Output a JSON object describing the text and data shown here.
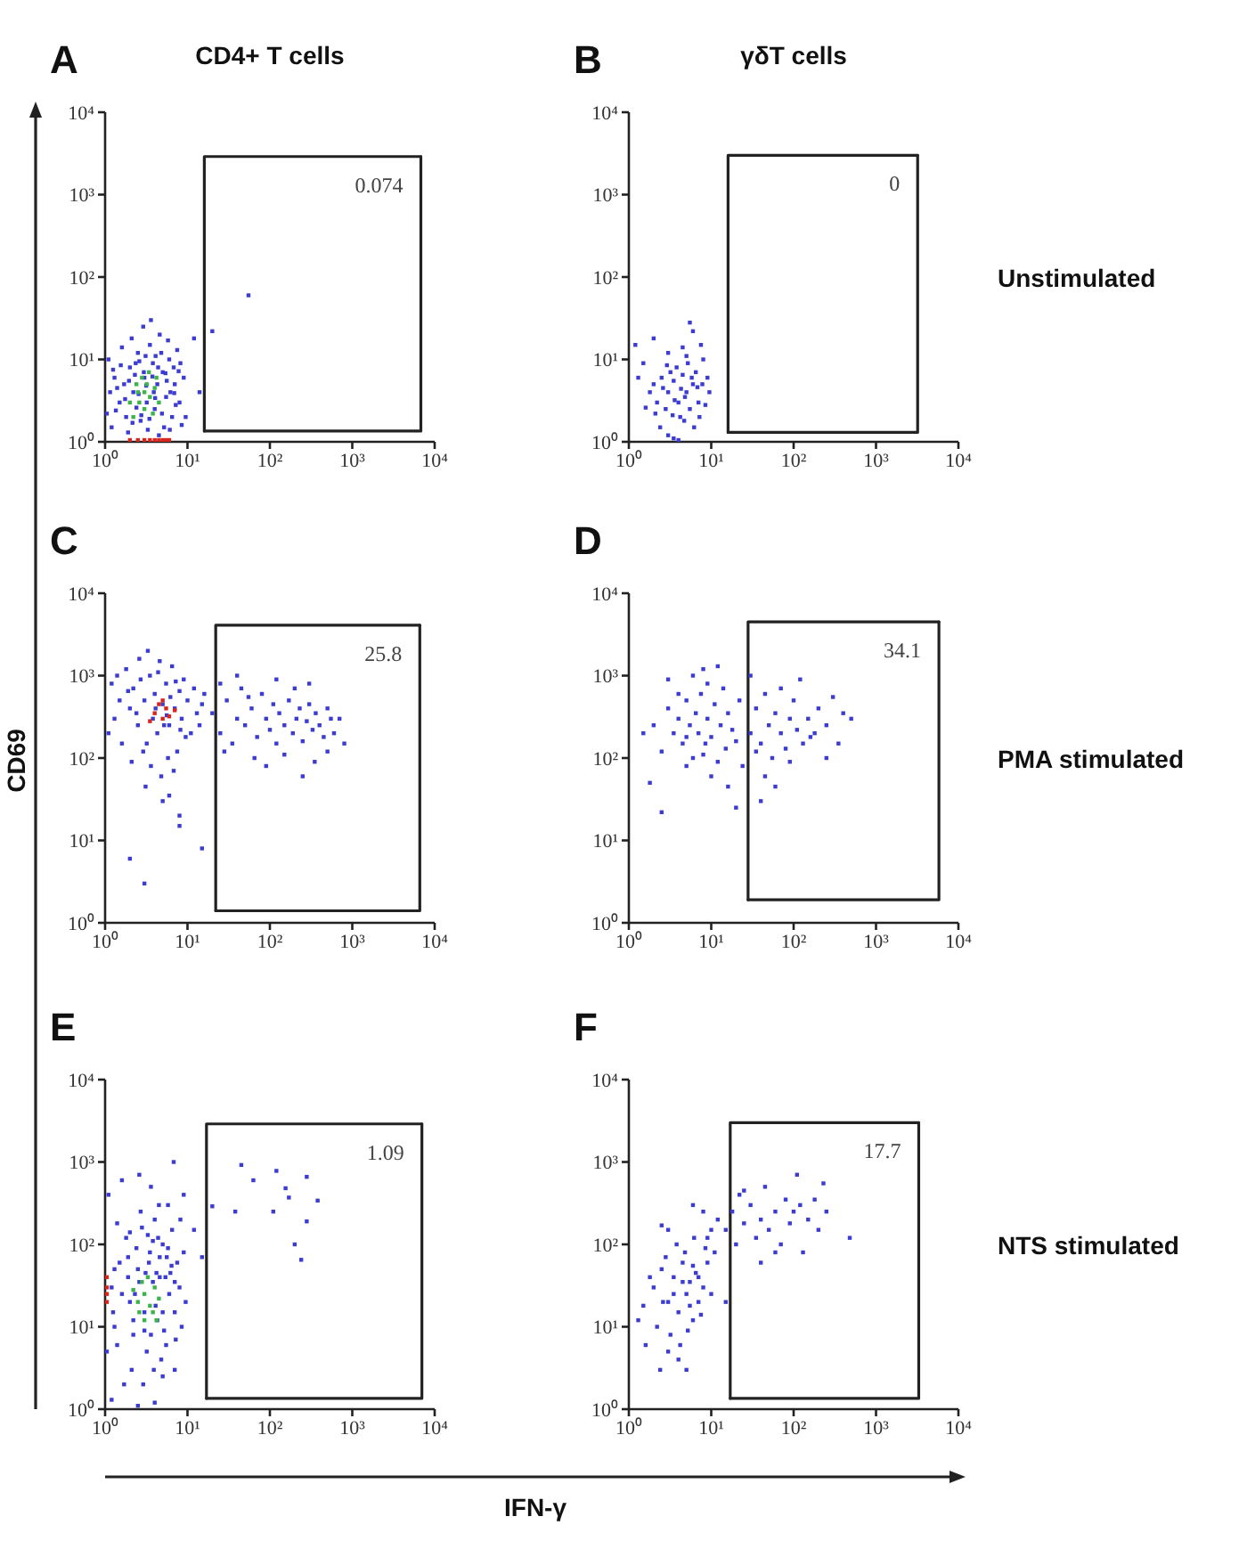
{
  "chart_data": [
    {
      "type": "scatter",
      "title": "A",
      "subtitle": "CD4+ T cells",
      "log": "xy",
      "marker": "square",
      "xlim": [
        1,
        10000
      ],
      "ylim": [
        1,
        10000
      ],
      "xticks": [
        {
          "value": 1,
          "label": "10⁰"
        },
        {
          "value": 10,
          "label": "10¹"
        },
        {
          "value": 100,
          "label": "10²"
        },
        {
          "value": 1000,
          "label": "10³"
        },
        {
          "value": 10000,
          "label": "10⁴"
        }
      ],
      "yticks": [
        {
          "value": 1,
          "label": "10⁰"
        },
        {
          "value": 10,
          "label": "10¹"
        },
        {
          "value": 100,
          "label": "10²"
        },
        {
          "value": 1000,
          "label": "10³"
        },
        {
          "value": 10000,
          "label": "10⁴"
        }
      ],
      "series": [
        {
          "color": "#3c3cd2",
          "x": [
            1.2,
            1.5,
            1.3,
            1.8,
            2,
            2.2,
            2.5,
            2.7,
            3,
            3.2,
            3.5,
            3.8,
            4,
            4.3,
            4.6,
            5,
            5.5,
            6,
            6.5,
            7,
            7.5,
            8,
            8.5,
            1.1,
            1.6,
            2.1,
            2.9,
            3.6,
            4.8,
            5.8,
            6.8,
            1.4,
            1.9,
            2.4,
            3.3,
            4.1,
            5.2,
            6.2,
            7.2,
            9,
            9.5,
            1.05,
            1.25,
            2.6,
            3.9,
            4.5,
            5.6,
            8.2,
            1.7,
            2.3,
            3.1,
            20,
            55,
            12,
            14,
            1.15,
            1.35,
            1.55,
            1.75,
            1.95,
            2.15,
            2.35,
            2.55,
            2.75,
            2.95,
            3.15,
            3.45,
            3.75,
            4.05,
            4.4,
            4.9,
            5.4,
            6.1,
            6.9,
            7.8
          ],
          "values": [
            1.5,
            3,
            6,
            2,
            8,
            4,
            12,
            1.8,
            6,
            3,
            15,
            9,
            2.5,
            5,
            20,
            7,
            3.5,
            10,
            2,
            5,
            13,
            3,
            1.6,
            10,
            14,
            18,
            25,
            30,
            12,
            17,
            8,
            4.5,
            1.3,
            2.6,
            1.4,
            11,
            1.5,
            4,
            2.8,
            6,
            2,
            2.2,
            7.5,
            9.5,
            4,
            1.2,
            5.5,
            9,
            5,
            6.5,
            11,
            22,
            60,
            18,
            4,
            4,
            2.4,
            8.5,
            3.3,
            5.5,
            1.7,
            9,
            3.8,
            2.1,
            7,
            4.8,
            1.9,
            6.2,
            3.4,
            8,
            2.2,
            6.8,
            1.4,
            3.9,
            7.2
          ]
        },
        {
          "color": "#3cb44b",
          "x": [
            2,
            2.5,
            3,
            3.2,
            3.5,
            4,
            2.8,
            3.8,
            2.2,
            4.5,
            3,
            2.6,
            3.4,
            4.2,
            2.4
          ],
          "values": [
            3,
            4,
            2.5,
            5,
            3.5,
            4.5,
            6,
            2.2,
            2,
            3,
            4,
            3,
            7,
            6,
            5
          ]
        },
        {
          "color": "#d7261e",
          "x": [
            2,
            2.5,
            3,
            3.5,
            4,
            4.5,
            5,
            5.5,
            6
          ],
          "values": [
            1.05,
            1.05,
            1.05,
            1.05,
            1.05,
            1.05,
            1.05,
            1.05,
            1.05
          ]
        },
        {
          "type": "line",
          "color": "#222222",
          "marker": "none",
          "x": [
            16,
            16,
            6800
          ],
          "values": [
            1.35,
            2900,
            2900
          ]
        },
        {
          "type": "line",
          "color": "#222222",
          "marker": "none",
          "x": [
            16,
            6800,
            6800
          ],
          "values": [
            1.35,
            1.35,
            2900
          ]
        }
      ],
      "annotations": [
        {
          "text": "0.074",
          "x": 6800,
          "y": 2900
        }
      ]
    },
    {
      "type": "scatter",
      "title": "B",
      "subtitle": "γδT cells",
      "log": "xy",
      "marker": "square",
      "xlim": [
        1,
        10000
      ],
      "ylim": [
        1,
        10000
      ],
      "xticks": [
        {
          "value": 1,
          "label": "10⁰"
        },
        {
          "value": 10,
          "label": "10¹"
        },
        {
          "value": 100,
          "label": "10²"
        },
        {
          "value": 1000,
          "label": "10³"
        },
        {
          "value": 10000,
          "label": "10⁴"
        }
      ],
      "yticks": [
        {
          "value": 1,
          "label": "10⁰"
        },
        {
          "value": 10,
          "label": "10¹"
        },
        {
          "value": 100,
          "label": "10²"
        },
        {
          "value": 1000,
          "label": "10³"
        },
        {
          "value": 10000,
          "label": "10⁴"
        }
      ],
      "series": [
        {
          "color": "#3c3cd2",
          "x": [
            2,
            2.5,
            3,
            3.5,
            4,
            4.5,
            5,
            5.5,
            6,
            2.2,
            2.8,
            3.2,
            3.8,
            4.2,
            4.8,
            5.2,
            6.5,
            7,
            2.4,
            3,
            3.5,
            4,
            5.5,
            6,
            4.5,
            7.5,
            8,
            9,
            1.5,
            1.3,
            1.2,
            2,
            3,
            2.6,
            3.6,
            4.3,
            5.8,
            6.8,
            7.2,
            8.5,
            2.1,
            1.8,
            4.7,
            3.4,
            5,
            1.6,
            9.5,
            2.9,
            6.2,
            7.8
          ],
          "values": [
            5,
            6,
            4,
            5.5,
            3,
            6.5,
            4,
            2.5,
            5,
            3,
            2.5,
            7,
            8,
            2,
            3.5,
            9,
            7,
            3,
            1.5,
            1.2,
            1.1,
            1.05,
            28,
            22,
            14,
            15,
            10,
            6,
            9,
            6,
            15,
            18,
            12,
            4.5,
            3.2,
            4.4,
            6,
            4.6,
            2,
            2.8,
            2.2,
            4,
            1.8,
            2.1,
            11,
            2.6,
            4,
            8.5,
            1.5,
            5
          ]
        },
        {
          "type": "line",
          "color": "#222222",
          "marker": "none",
          "x": [
            16,
            16,
            3200
          ],
          "values": [
            1.3,
            3000,
            3000
          ]
        },
        {
          "type": "line",
          "color": "#222222",
          "marker": "none",
          "x": [
            16,
            3200,
            3200
          ],
          "values": [
            1.3,
            1.3,
            3000
          ]
        }
      ],
      "annotations": [
        {
          "text": "0",
          "x": 3200,
          "y": 3000
        },
        "Unstimulated"
      ]
    },
    {
      "type": "scatter",
      "title": "C",
      "ylabel": "CD69",
      "log": "xy",
      "marker": "square",
      "xlim": [
        1,
        10000
      ],
      "ylim": [
        1,
        10000
      ],
      "xticks": [
        {
          "value": 1,
          "label": "10⁰"
        },
        {
          "value": 10,
          "label": "10¹"
        },
        {
          "value": 100,
          "label": "10²"
        },
        {
          "value": 1000,
          "label": "10³"
        },
        {
          "value": 10000,
          "label": "10⁴"
        }
      ],
      "yticks": [
        {
          "value": 1,
          "label": "10⁰"
        },
        {
          "value": 10,
          "label": "10¹"
        },
        {
          "value": 100,
          "label": "10²"
        },
        {
          "value": 1000,
          "label": "10³"
        },
        {
          "value": 10000,
          "label": "10⁴"
        }
      ],
      "series": [
        {
          "color": "#3c3cd2",
          "x": [
            1.2,
            1.5,
            1.3,
            1.8,
            2,
            2.2,
            2.5,
            2.7,
            3,
            3.2,
            3.5,
            3.8,
            4,
            4.3,
            4.6,
            5,
            5.5,
            6,
            6.5,
            7,
            7.5,
            8,
            8.5,
            9,
            10,
            11,
            12,
            13,
            15,
            1.1,
            1.6,
            2.1,
            2.9,
            3.6,
            4.8,
            5.8,
            6.8,
            1.4,
            1.9,
            2.4,
            3.3,
            4.1,
            5.2,
            6.2,
            7.2,
            9.5,
            14,
            16,
            2.6,
            4.4,
            5.6,
            8.2,
            3.1,
            5,
            8,
            6,
            2,
            3,
            8,
            15,
            20,
            25,
            30,
            35,
            40,
            45,
            50,
            60,
            70,
            80,
            90,
            100,
            110,
            120,
            130,
            150,
            170,
            190,
            210,
            230,
            250,
            280,
            300,
            330,
            360,
            400,
            450,
            500,
            550,
            600,
            700,
            800,
            25,
            40,
            65,
            90,
            150,
            250,
            350,
            500,
            120,
            200,
            300,
            28,
            55
          ],
          "values": [
            800,
            500,
            300,
            1200,
            400,
            700,
            250,
            900,
            500,
            150,
            1000,
            300,
            600,
            200,
            1500,
            450,
            800,
            250,
            1300,
            400,
            120,
            650,
            300,
            900,
            500,
            200,
            700,
            350,
            450,
            200,
            150,
            90,
            120,
            80,
            60,
            100,
            70,
            1000,
            650,
            350,
            2000,
            400,
            250,
            550,
            850,
            180,
            250,
            600,
            1600,
            1100,
            330,
            220,
            45,
            30,
            20,
            35,
            6,
            3,
            15,
            8,
            350,
            200,
            500,
            150,
            300,
            700,
            250,
            400,
            180,
            600,
            300,
            220,
            450,
            150,
            350,
            250,
            500,
            200,
            300,
            400,
            160,
            280,
            450,
            220,
            350,
            250,
            180,
            400,
            300,
            200,
            300,
            150,
            800,
            1000,
            100,
            80,
            110,
            60,
            90,
            120,
            900,
            700,
            800,
            120,
            550
          ]
        },
        {
          "color": "#d7261e",
          "x": [
            4,
            5,
            5.5,
            6,
            4.5,
            3.5,
            7,
            5
          ],
          "values": [
            350,
            300,
            400,
            320,
            450,
            280,
            380,
            500
          ]
        },
        {
          "type": "line",
          "color": "#222222",
          "marker": "none",
          "x": [
            22,
            22,
            6600
          ],
          "values": [
            1.4,
            4100,
            4100
          ]
        },
        {
          "type": "line",
          "color": "#222222",
          "marker": "none",
          "x": [
            22,
            6600,
            6600
          ],
          "values": [
            1.4,
            1.4,
            4100
          ]
        }
      ],
      "annotations": [
        {
          "text": "25.8",
          "x": 6600,
          "y": 4100
        }
      ]
    },
    {
      "type": "scatter",
      "title": "D",
      "log": "xy",
      "marker": "square",
      "xlim": [
        1,
        10000
      ],
      "ylim": [
        1,
        10000
      ],
      "xticks": [
        {
          "value": 1,
          "label": "10⁰"
        },
        {
          "value": 10,
          "label": "10¹"
        },
        {
          "value": 100,
          "label": "10²"
        },
        {
          "value": 1000,
          "label": "10³"
        },
        {
          "value": 10000,
          "label": "10⁴"
        }
      ],
      "yticks": [
        {
          "value": 1,
          "label": "10⁰"
        },
        {
          "value": 10,
          "label": "10¹"
        },
        {
          "value": 100,
          "label": "10²"
        },
        {
          "value": 1000,
          "label": "10³"
        },
        {
          "value": 10000,
          "label": "10⁴"
        }
      ],
      "series": [
        {
          "color": "#3c3cd2",
          "x": [
            2,
            2.5,
            3,
            3.5,
            4,
            4.5,
            5,
            5.5,
            6,
            6.5,
            7,
            7.5,
            8,
            8.5,
            9,
            10,
            11,
            12,
            13,
            14,
            15,
            16,
            18,
            20,
            22,
            24,
            1.5,
            1.8,
            2.5,
            3,
            4,
            5,
            6,
            9,
            10,
            12,
            16,
            20,
            8,
            5,
            30,
            35,
            40,
            45,
            50,
            55,
            60,
            70,
            80,
            90,
            100,
            110,
            120,
            130,
            150,
            180,
            200,
            250,
            300,
            350,
            400,
            30,
            40,
            45,
            60,
            70,
            35,
            90,
            500,
            250,
            160
          ],
          "values": [
            250,
            120,
            400,
            200,
            300,
            150,
            500,
            250,
            100,
            350,
            200,
            600,
            1200,
            150,
            300,
            180,
            450,
            90,
            250,
            700,
            130,
            350,
            220,
            160,
            500,
            80,
            200,
            50,
            22,
            900,
            600,
            80,
            1000,
            800,
            60,
            1300,
            45,
            25,
            110,
            180,
            200,
            400,
            150,
            600,
            250,
            100,
            350,
            200,
            130,
            300,
            500,
            220,
            900,
            150,
            300,
            200,
            400,
            250,
            550,
            150,
            350,
            1000,
            30,
            60,
            45,
            700,
            120,
            90,
            300,
            100,
            180
          ]
        },
        {
          "type": "line",
          "color": "#222222",
          "marker": "none",
          "x": [
            28,
            28,
            5800
          ],
          "values": [
            1.9,
            4500,
            4500
          ]
        },
        {
          "type": "line",
          "color": "#222222",
          "marker": "none",
          "x": [
            28,
            5800,
            5800
          ],
          "values": [
            1.9,
            1.9,
            4500
          ]
        }
      ],
      "annotations": [
        {
          "text": "34.1",
          "x": 5800,
          "y": 4500
        },
        "PMA stimulated"
      ]
    },
    {
      "type": "scatter",
      "title": "E",
      "xlabel": "IFN-γ",
      "log": "xy",
      "marker": "square",
      "xlim": [
        1,
        10000
      ],
      "ylim": [
        1,
        10000
      ],
      "xticks": [
        {
          "value": 1,
          "label": "10⁰"
        },
        {
          "value": 10,
          "label": "10¹"
        },
        {
          "value": 100,
          "label": "10²"
        },
        {
          "value": 1000,
          "label": "10³"
        },
        {
          "value": 10000,
          "label": "10⁴"
        }
      ],
      "yticks": [
        {
          "value": 1,
          "label": "10⁰"
        },
        {
          "value": 10,
          "label": "10¹"
        },
        {
          "value": 100,
          "label": "10²"
        },
        {
          "value": 1000,
          "label": "10³"
        },
        {
          "value": 10000,
          "label": "10⁴"
        }
      ],
      "series": [
        {
          "color": "#3c3cd2",
          "x": [
            1.2,
            1.5,
            1.3,
            1.8,
            2,
            2.2,
            2.5,
            2.7,
            3,
            3.2,
            3.5,
            3.8,
            4,
            4.3,
            4.6,
            5,
            5.5,
            6,
            6.5,
            7,
            7.5,
            8,
            8.5,
            9,
            1.1,
            1.6,
            2.1,
            2.9,
            3.6,
            4.8,
            5.8,
            6.8,
            1.4,
            1.9,
            2.4,
            3.3,
            4.1,
            5.2,
            6.2,
            7.2,
            9.5,
            1.05,
            1.25,
            2.6,
            3.9,
            4.5,
            5.6,
            8.2,
            1.7,
            2.3,
            3.1,
            12,
            15,
            1.2,
            2.5,
            4,
            5,
            7,
            9,
            45,
            120,
            280,
            38,
            110,
            170,
            280,
            200,
            240,
            20,
            380,
            63,
            155,
            1.3,
            1.6,
            1.9,
            2.2,
            2.6,
            3,
            3.4,
            3.8,
            4.2,
            4.6,
            5,
            5.4,
            5.8,
            6.4,
            7,
            1.4,
            2,
            2.8,
            3.6,
            4.4
          ],
          "values": [
            30,
            60,
            10,
            120,
            20,
            8,
            50,
            250,
            15,
            5,
            80,
            35,
            200,
            12,
            40,
            100,
            6,
            25,
            150,
            15,
            60,
            30,
            10,
            80,
            400,
            600,
            3,
            2,
            500,
            4,
            300,
            1000,
            180,
            40,
            90,
            130,
            18,
            9,
            45,
            7,
            20,
            5,
            15,
            700,
            3,
            300,
            70,
            200,
            2,
            25,
            45,
            150,
            70,
            1.3,
            1.1,
            1.2,
            2.5,
            3,
            400,
            920,
            780,
            660,
            250,
            250,
            370,
            190,
            100,
            65,
            290,
            340,
            600,
            480,
            50,
            25,
            70,
            12,
            35,
            9,
            60,
            110,
            45,
            70,
            15,
            40,
            90,
            55,
            35,
            6,
            140,
            160,
            8,
            120
          ]
        },
        {
          "color": "#3cb44b",
          "x": [
            2.5,
            3,
            3.5,
            4,
            3,
            2.8,
            3.8,
            4.5,
            2.2,
            3.3,
            4.2,
            2.6
          ],
          "values": [
            20,
            25,
            18,
            30,
            12,
            35,
            15,
            22,
            28,
            40,
            12,
            15
          ]
        },
        {
          "color": "#d7261e",
          "x": [
            1.05,
            1.05,
            1.05,
            1.05
          ],
          "values": [
            20,
            30,
            40,
            25
          ]
        },
        {
          "type": "line",
          "color": "#222222",
          "marker": "none",
          "x": [
            17,
            17,
            7000
          ],
          "values": [
            1.35,
            2900,
            2900
          ]
        },
        {
          "type": "line",
          "color": "#222222",
          "marker": "none",
          "x": [
            17,
            7000,
            7000
          ],
          "values": [
            1.35,
            1.35,
            2900
          ]
        }
      ],
      "annotations": [
        {
          "text": "1.09",
          "x": 7000,
          "y": 2900
        }
      ]
    },
    {
      "type": "scatter",
      "title": "F",
      "log": "xy",
      "marker": "square",
      "xlim": [
        1,
        10000
      ],
      "ylim": [
        1,
        10000
      ],
      "xticks": [
        {
          "value": 1,
          "label": "10⁰"
        },
        {
          "value": 10,
          "label": "10¹"
        },
        {
          "value": 100,
          "label": "10²"
        },
        {
          "value": 1000,
          "label": "10³"
        },
        {
          "value": 10000,
          "label": "10⁴"
        }
      ],
      "yticks": [
        {
          "value": 1,
          "label": "10⁰"
        },
        {
          "value": 10,
          "label": "10¹"
        },
        {
          "value": 100,
          "label": "10²"
        },
        {
          "value": 1000,
          "label": "10³"
        },
        {
          "value": 10000,
          "label": "10⁴"
        }
      ],
      "series": [
        {
          "color": "#3c3cd2",
          "x": [
            2,
            2.5,
            3,
            3.5,
            4,
            4.5,
            5,
            5.5,
            6,
            6.5,
            7,
            8,
            9,
            10,
            2.2,
            2.8,
            3.2,
            3.8,
            4.2,
            4.8,
            5.2,
            6.2,
            7.5,
            8.5,
            1.5,
            1.8,
            1.6,
            3,
            4,
            5,
            2.4,
            1.3,
            3.5,
            4.5,
            2.6,
            5.5,
            6,
            7,
            10,
            12,
            8,
            6,
            9,
            11,
            3,
            2.5,
            15,
            18,
            20,
            22,
            25,
            30,
            35,
            40,
            45,
            50,
            60,
            70,
            80,
            90,
            100,
            110,
            120,
            130,
            150,
            180,
            200,
            230,
            250,
            40,
            60,
            25,
            15,
            480
          ],
          "values": [
            30,
            50,
            20,
            40,
            15,
            60,
            25,
            35,
            12,
            45,
            20,
            30,
            60,
            25,
            10,
            70,
            8,
            100,
            6,
            80,
            9,
            120,
            14,
            90,
            18,
            40,
            6,
            5,
            4,
            3,
            3,
            12,
            25,
            35,
            20,
            18,
            55,
            40,
            150,
            200,
            250,
            300,
            120,
            80,
            150,
            170,
            150,
            250,
            100,
            400,
            180,
            300,
            120,
            200,
            500,
            150,
            250,
            100,
            350,
            180,
            250,
            700,
            300,
            80,
            200,
            350,
            150,
            550,
            250,
            60,
            80,
            450,
            20,
            120
          ]
        },
        {
          "type": "line",
          "color": "#222222",
          "marker": "none",
          "x": [
            17,
            17,
            3300
          ],
          "values": [
            1.35,
            3000,
            3000
          ]
        },
        {
          "type": "line",
          "color": "#222222",
          "marker": "none",
          "x": [
            17,
            3300,
            3300
          ],
          "values": [
            1.35,
            1.35,
            3000
          ]
        }
      ],
      "annotations": [
        {
          "text": "17.7",
          "x": 3300,
          "y": 3000
        },
        "NTS stimulated"
      ]
    }
  ]
}
